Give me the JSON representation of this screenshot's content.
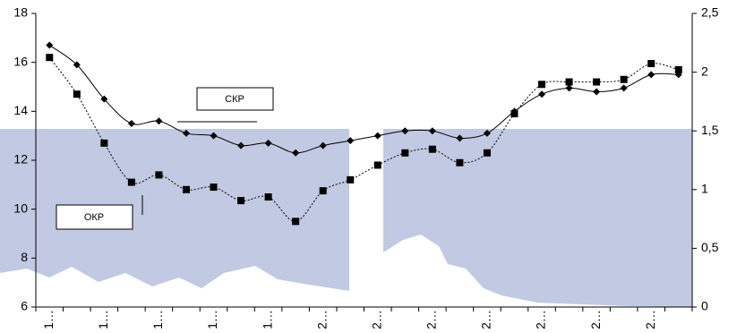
{
  "chart_data": {
    "type": "line",
    "categories": [
      "1…",
      null,
      "1…",
      null,
      "1…",
      null,
      "1…",
      null,
      "1…",
      null,
      "2…",
      null,
      "2…",
      null,
      "2…",
      null,
      "2…",
      null,
      "2…",
      null,
      "2…",
      null,
      "2…",
      null
    ],
    "series": [
      {
        "color": "#000000",
        "marker": "diamond",
        "dash": "solid",
        "values": [
          16.7,
          15.9,
          14.5,
          13.5,
          13.6,
          13.1,
          13.0,
          12.6,
          12.7,
          12.3,
          12.6,
          12.8,
          13.0,
          13.2,
          13.2,
          12.9,
          13.1,
          14.0,
          14.7,
          14.95,
          14.8,
          14.95,
          15.5,
          15.5
        ]
      },
      {
        "color": "#000000",
        "marker": "square",
        "dash": "dotted",
        "values": [
          16.2,
          14.7,
          12.7,
          11.1,
          11.4,
          10.8,
          10.9,
          10.35,
          10.5,
          9.5,
          10.75,
          11.2,
          11.8,
          12.3,
          12.45,
          11.9,
          12.3,
          13.9,
          15.1,
          15.2,
          15.2,
          15.3,
          15.95,
          15.7
        ]
      }
    ],
    "ylim": [
      6,
      18
    ],
    "yticks": [
      6,
      8,
      10,
      12,
      14,
      16,
      18
    ],
    "y2lim": [
      0,
      2.5
    ],
    "y2ticks": [
      0,
      {
        "value": 0.5,
        "label": "0,5"
      },
      1,
      {
        "value": 1.5,
        "label": "1,5"
      },
      2,
      {
        "value": 2.5,
        "label": "2,5"
      }
    ],
    "annotations": [
      "СКР",
      "ОКР"
    ],
    "grid": false
  }
}
